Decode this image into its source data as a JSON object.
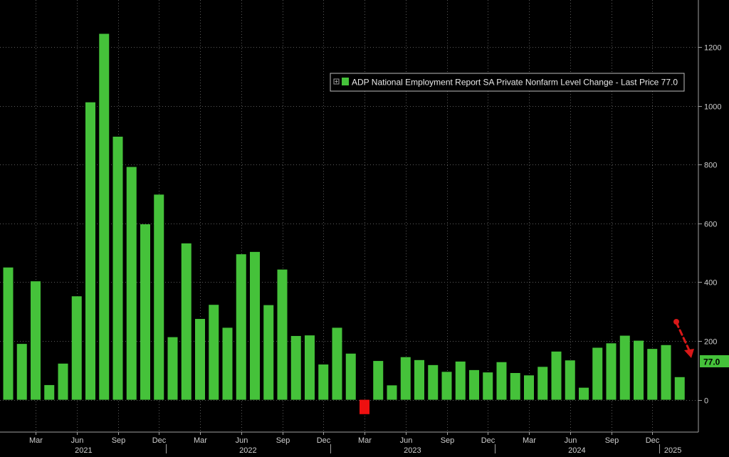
{
  "chart_data": {
    "type": "bar",
    "legend_label": "ADP National Employment Report SA Private Nonfarm Level Change - Last Price 77.0",
    "last_price_badge": "77.0",
    "last_value": 77,
    "ylim": [
      -110,
      1360
    ],
    "yticks": [
      {
        "value": 1200,
        "label": "1200"
      },
      {
        "value": 1000,
        "label": "1000"
      },
      {
        "value": 800,
        "label": "800"
      },
      {
        "value": 600,
        "label": "600"
      },
      {
        "value": 400,
        "label": "400"
      },
      {
        "value": 200,
        "label": "200"
      },
      {
        "value": 0,
        "label": "0"
      }
    ],
    "values": [
      450,
      190,
      403,
      50,
      123,
      352,
      1012,
      1245,
      895,
      792,
      597,
      698,
      213,
      532,
      275,
      323,
      245,
      495,
      503,
      322,
      443,
      217,
      219,
      120,
      245,
      157,
      -49,
      132,
      49,
      145,
      135,
      118,
      95,
      130,
      101,
      93,
      128,
      91,
      83,
      112,
      164,
      134,
      41,
      177,
      192,
      218,
      201,
      173,
      186,
      77
    ],
    "colors": {
      "positive": "#45c23a",
      "negative": "#ee1010",
      "grid": "#5a5a5a",
      "axis": "#a0a0a0",
      "text": "#cfcfcf",
      "badge_bg": "#45c23a",
      "arrow": "#d81818"
    },
    "xaxis": {
      "months": [
        {
          "index": 2,
          "label": "Mar"
        },
        {
          "index": 5,
          "label": "Jun"
        },
        {
          "index": 8,
          "label": "Sep"
        },
        {
          "index": 11,
          "label": "Dec"
        },
        {
          "index": 14,
          "label": "Mar"
        },
        {
          "index": 17,
          "label": "Jun"
        },
        {
          "index": 20,
          "label": "Sep"
        },
        {
          "index": 23,
          "label": "Dec"
        },
        {
          "index": 26,
          "label": "Mar"
        },
        {
          "index": 29,
          "label": "Jun"
        },
        {
          "index": 32,
          "label": "Sep"
        },
        {
          "index": 35,
          "label": "Dec"
        },
        {
          "index": 38,
          "label": "Mar"
        },
        {
          "index": 41,
          "label": "Jun"
        },
        {
          "index": 44,
          "label": "Sep"
        },
        {
          "index": 47,
          "label": "Dec"
        }
      ],
      "years": [
        {
          "label": "2021",
          "start": 0,
          "end": 11
        },
        {
          "label": "2022",
          "start": 12,
          "end": 23
        },
        {
          "label": "2023",
          "start": 24,
          "end": 35
        },
        {
          "label": "2024",
          "start": 36,
          "end": 47
        },
        {
          "label": "2025",
          "start": 48,
          "end": 49
        }
      ]
    }
  }
}
